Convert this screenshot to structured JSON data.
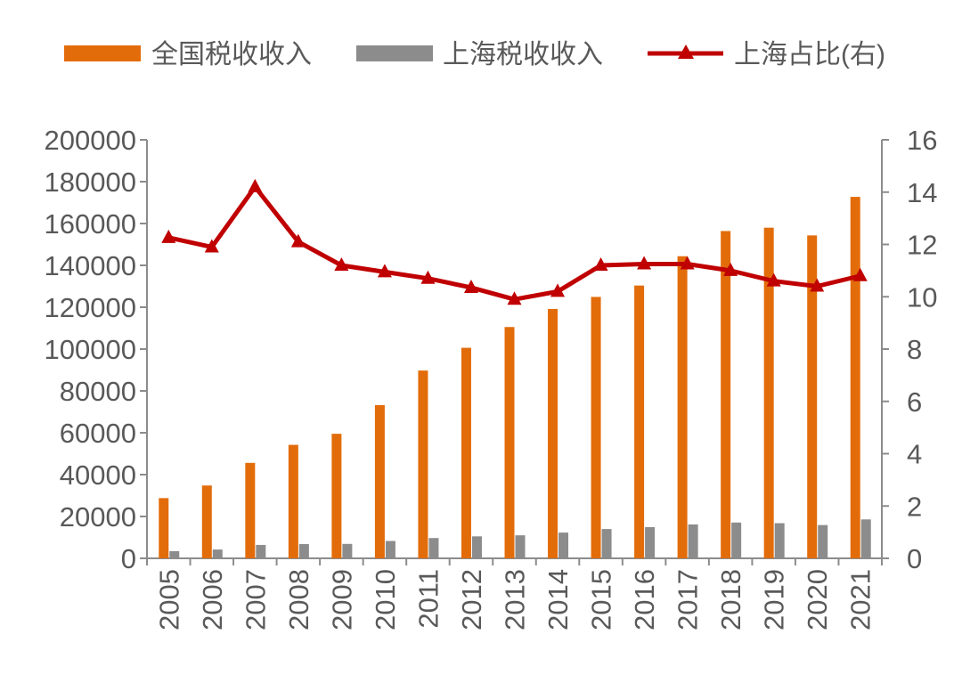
{
  "chart_data": {
    "type": "bar",
    "title": "",
    "categories": [
      "2005",
      "2006",
      "2007",
      "2008",
      "2009",
      "2010",
      "2011",
      "2012",
      "2013",
      "2014",
      "2015",
      "2016",
      "2017",
      "2018",
      "2019",
      "2020",
      "2021"
    ],
    "series": [
      {
        "name": "全国税收收入",
        "type": "bar",
        "axis": "left",
        "color": "#E36C0A",
        "values": [
          28778,
          34804,
          45622,
          54224,
          59522,
          73211,
          89738,
          100614,
          110531,
          119175,
          124922,
          130360,
          144370,
          156403,
          158000,
          154312,
          172731
        ]
      },
      {
        "name": "上海税收收入",
        "type": "bar",
        "axis": "left",
        "color": "#8C8C8C",
        "values": [
          3400,
          4200,
          6400,
          6800,
          6900,
          8300,
          9700,
          10500,
          11000,
          12300,
          14000,
          14900,
          16200,
          17100,
          16800,
          15900,
          18600
        ]
      },
      {
        "name": "上海占比(右)",
        "type": "line",
        "axis": "right",
        "color": "#C00000",
        "values": [
          12.26,
          11.9,
          14.2,
          12.1,
          11.2,
          10.95,
          10.7,
          10.35,
          9.9,
          10.2,
          11.2,
          11.25,
          11.25,
          11.0,
          10.6,
          10.4,
          10.8
        ]
      }
    ],
    "y_left": {
      "min": 0,
      "max": 200000,
      "ticks": [
        "0",
        "20000",
        "40000",
        "60000",
        "80000",
        "100000",
        "120000",
        "140000",
        "160000",
        "180000",
        "200000"
      ]
    },
    "y_right": {
      "min": 0,
      "max": 16,
      "ticks": [
        "0",
        "2",
        "4",
        "6",
        "8",
        "10",
        "12",
        "14",
        "16"
      ]
    },
    "xlabel": "",
    "ylabel": "",
    "grid": false,
    "legend_position": "top"
  }
}
